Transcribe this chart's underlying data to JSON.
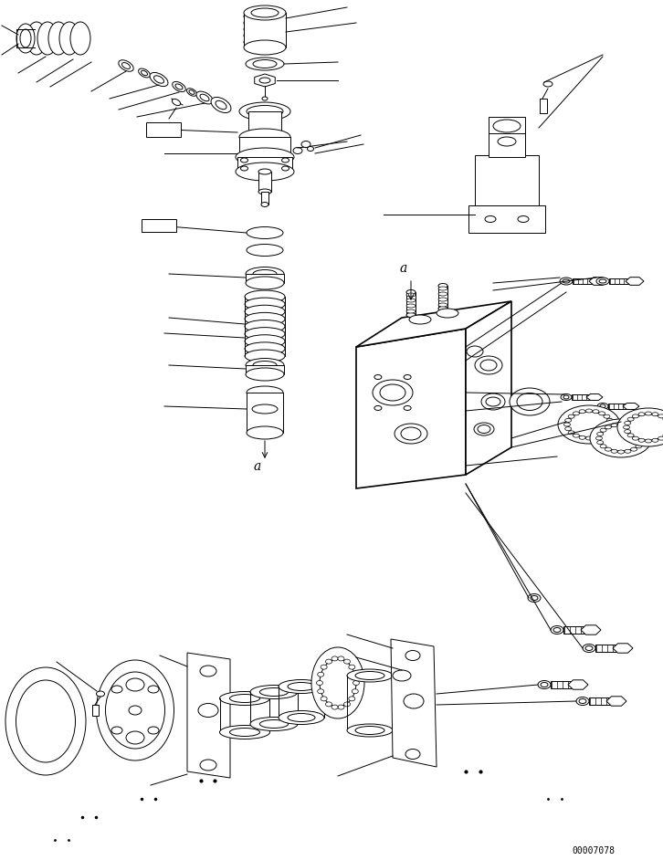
{
  "bg_color": "#ffffff",
  "line_color": "#000000",
  "fig_width": 7.26,
  "fig_height": 9.42,
  "dpi": 100,
  "part_number": "00007078"
}
